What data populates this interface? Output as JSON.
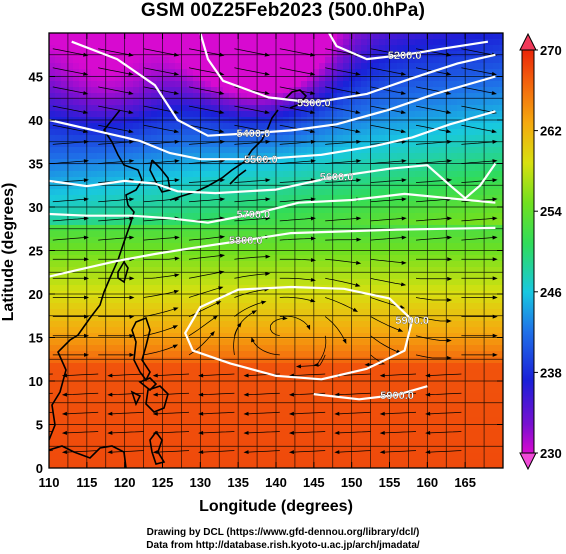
{
  "title": "GSM 00Z25Feb2023 (500.0hPa)",
  "x_axis": {
    "label": "Longitude (degrees)",
    "range": [
      110,
      170
    ],
    "ticks": [
      "110",
      "115",
      "120",
      "125",
      "130",
      "135",
      "140",
      "145",
      "150",
      "155",
      "160",
      "165"
    ]
  },
  "y_axis": {
    "label": "Latitude  (degrees)",
    "range": [
      0,
      50
    ],
    "ticks": [
      "0",
      "5",
      "10",
      "15",
      "20",
      "25",
      "30",
      "35",
      "40",
      "45"
    ]
  },
  "colorbar": {
    "range": [
      230,
      270
    ],
    "ticks": [
      "230",
      "238",
      "246",
      "254",
      "262",
      "270"
    ]
  },
  "contour_labels": [
    "5200.0",
    "5300.0",
    "5400.0",
    "5500.0",
    "5600.0",
    "5700.0",
    "5800.0",
    "5900.0",
    "5900.0"
  ],
  "credits": {
    "line1": "Drawing by DCL (https://www.gfd-dennou.org/library/dcl/)",
    "line2": "Data from http://database.rish.kyoto-u.ac.jp/arch/jmadata/"
  },
  "chart_data": {
    "type": "heatmap",
    "title": "GSM 00Z25Feb2023 (500.0hPa)",
    "xlabel": "Longitude (degrees)",
    "ylabel": "Latitude  (degrees)",
    "xlim": [
      110,
      170
    ],
    "ylim": [
      0,
      50
    ],
    "colorbar_range": [
      230,
      270
    ],
    "colorbar_ticks": [
      230,
      238,
      246,
      254,
      262,
      270
    ],
    "contours": [
      {
        "level": 5200,
        "label": "5200.0",
        "points": [
          [
            147,
            50
          ],
          [
            148,
            48.5
          ],
          [
            152,
            47
          ],
          [
            157,
            47.5
          ],
          [
            162,
            48.2
          ],
          [
            168,
            49
          ]
        ]
      },
      {
        "level": 5300,
        "label": "5300.0",
        "points": [
          [
            130,
            50
          ],
          [
            131,
            47
          ],
          [
            133,
            44.5
          ],
          [
            139,
            42.6
          ],
          [
            145,
            42
          ],
          [
            152,
            43
          ],
          [
            158,
            44.8
          ],
          [
            164,
            46.5
          ],
          [
            169,
            47.5
          ]
        ]
      },
      {
        "level": 5400,
        "label": "5400.0",
        "points": [
          [
            113,
            49
          ],
          [
            119,
            47
          ],
          [
            124,
            44
          ],
          [
            127,
            40
          ],
          [
            131,
            38.2
          ],
          [
            137,
            38.5
          ],
          [
            142,
            38.8
          ],
          [
            148,
            39.5
          ],
          [
            155,
            41.2
          ],
          [
            161,
            43
          ],
          [
            169,
            45
          ]
        ]
      },
      {
        "level": 5500,
        "label": "5500.0",
        "points": [
          [
            110,
            40
          ],
          [
            116,
            38.8
          ],
          [
            122,
            37.6
          ],
          [
            126,
            36.2
          ],
          [
            130,
            35.5
          ],
          [
            138,
            35.5
          ],
          [
            146,
            36
          ],
          [
            153,
            37
          ],
          [
            158,
            38
          ],
          [
            163,
            39.5
          ],
          [
            169,
            41
          ]
        ]
      },
      {
        "level": 5600,
        "label": "5600.0",
        "points": [
          [
            110,
            33
          ],
          [
            115,
            32.4
          ],
          [
            120,
            33
          ],
          [
            124,
            32.7
          ],
          [
            127,
            31.8
          ],
          [
            132,
            31.6
          ],
          [
            140,
            32
          ],
          [
            148,
            33.5
          ],
          [
            155,
            34.4
          ],
          [
            160,
            34.8
          ],
          [
            163,
            32.5
          ],
          [
            165,
            31
          ],
          [
            167,
            32.5
          ],
          [
            169,
            35
          ]
        ]
      },
      {
        "level": 5700,
        "label": "5700.0",
        "points": [
          [
            110,
            29.2
          ],
          [
            115,
            29
          ],
          [
            121,
            29
          ],
          [
            126,
            28.7
          ],
          [
            131,
            28.2
          ],
          [
            137,
            29.2
          ],
          [
            143,
            30.5
          ],
          [
            150,
            30.8
          ],
          [
            157,
            31.5
          ],
          [
            163,
            31
          ],
          [
            169,
            30.5
          ]
        ]
      },
      {
        "level": 5800,
        "label": "5800.0",
        "points": [
          [
            110,
            22
          ],
          [
            114,
            22.8
          ],
          [
            119,
            23.8
          ],
          [
            124,
            24.6
          ],
          [
            129,
            25.3
          ],
          [
            136,
            26.2
          ],
          [
            142,
            27
          ],
          [
            149,
            27.2
          ],
          [
            156,
            27.4
          ],
          [
            163,
            27.5
          ],
          [
            169,
            27.6
          ]
        ]
      }
    ],
    "closed_contours": [
      {
        "level": 5900,
        "label": "5900.0",
        "points": [
          [
            128,
            15.5
          ],
          [
            130,
            18.5
          ],
          [
            135,
            20.5
          ],
          [
            142,
            20.8
          ],
          [
            149,
            20.6
          ],
          [
            155,
            19.5
          ],
          [
            158,
            17
          ],
          [
            157,
            13.5
          ],
          [
            152,
            11.4
          ],
          [
            146,
            10.2
          ],
          [
            140,
            10.6
          ],
          [
            134,
            12
          ],
          [
            129,
            13.5
          ]
        ]
      }
    ],
    "open_5900": {
      "level": 5900,
      "label": "5900.0",
      "points": [
        [
          145,
          8.5
        ],
        [
          151,
          7.9
        ],
        [
          156,
          8.4
        ],
        [
          160,
          9.4
        ]
      ]
    }
  }
}
